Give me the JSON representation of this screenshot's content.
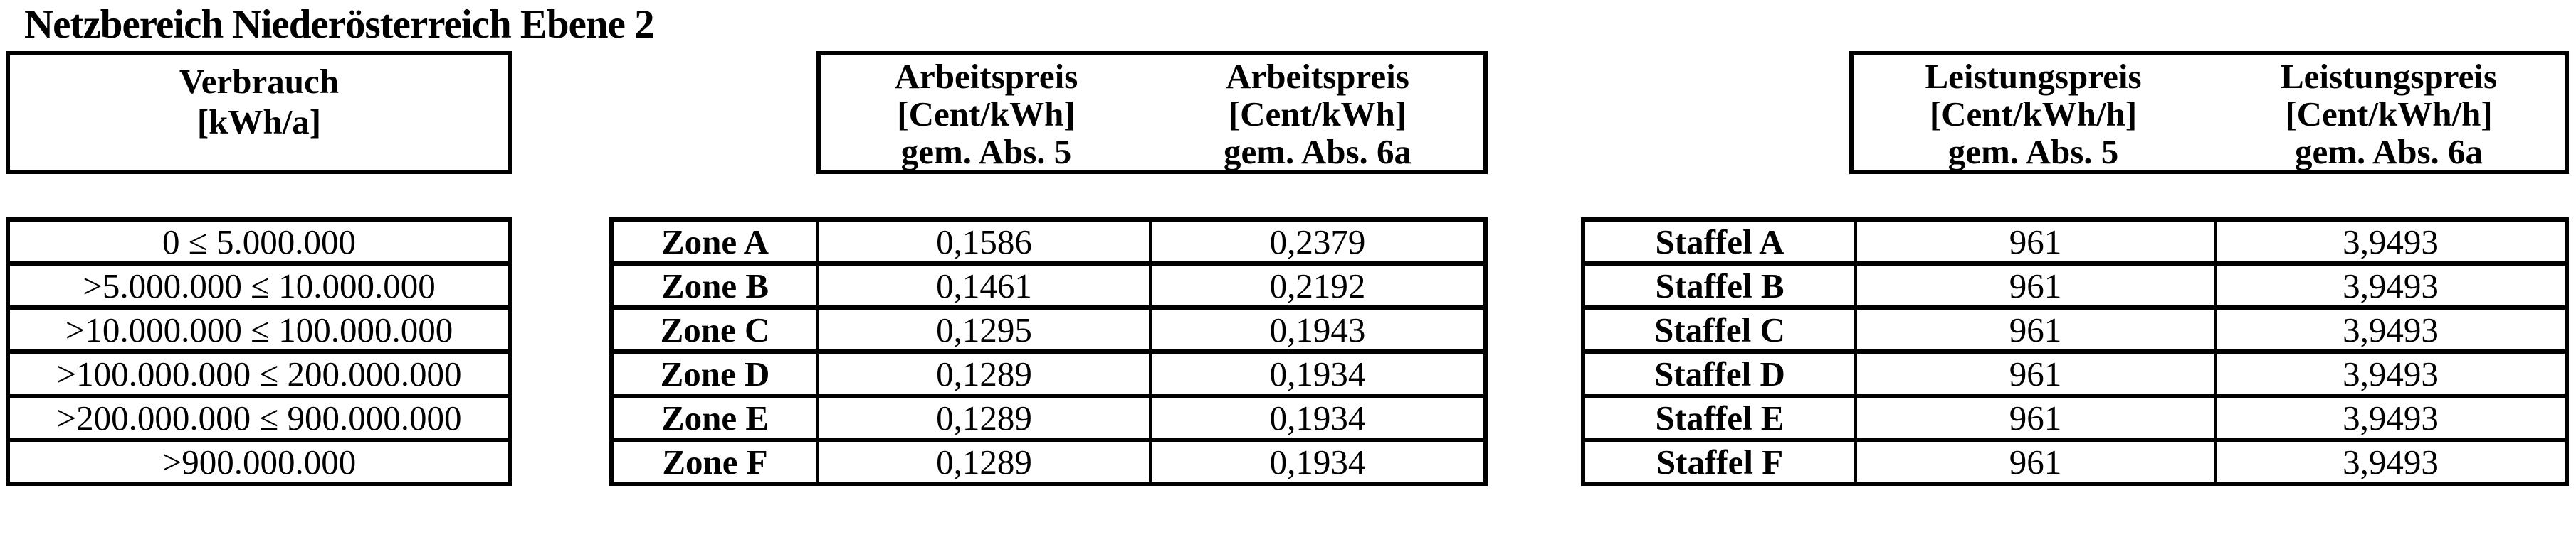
{
  "page": {
    "title": "Netzbereich Niederösterreich Ebene 2"
  },
  "colors": {
    "text": "#000000",
    "border": "#000000",
    "background": "#ffffff"
  },
  "verbrauch": {
    "header": {
      "line1": "Verbrauch",
      "line2": "[kWh/a]"
    },
    "rows": [
      "0 ≤ 5.000.000",
      ">5.000.000 ≤ 10.000.000",
      ">10.000.000 ≤ 100.000.000",
      ">100.000.000 ≤ 200.000.000",
      ">200.000.000 ≤ 900.000.000",
      ">900.000.000"
    ]
  },
  "arbeitspreis": {
    "header": {
      "col1": {
        "line1": "Arbeitspreis",
        "line2": "[Cent/kWh]",
        "line3": "gem. Abs. 5"
      },
      "col2": {
        "line1": "Arbeitspreis",
        "line2": "[Cent/kWh]",
        "line3": "gem. Abs. 6a"
      }
    },
    "rows": [
      {
        "label": "Zone A",
        "abs5": "0,1586",
        "abs6a": "0,2379"
      },
      {
        "label": "Zone B",
        "abs5": "0,1461",
        "abs6a": "0,2192"
      },
      {
        "label": "Zone C",
        "abs5": "0,1295",
        "abs6a": "0,1943"
      },
      {
        "label": "Zone D",
        "abs5": "0,1289",
        "abs6a": "0,1934"
      },
      {
        "label": "Zone E",
        "abs5": "0,1289",
        "abs6a": "0,1934"
      },
      {
        "label": "Zone F",
        "abs5": "0,1289",
        "abs6a": "0,1934"
      }
    ]
  },
  "leistungspreis": {
    "header": {
      "col1": {
        "line1": "Leistungspreis",
        "line2": "[Cent/kWh/h]",
        "line3": "gem. Abs. 5"
      },
      "col2": {
        "line1": "Leistungspreis",
        "line2": "[Cent/kWh/h]",
        "line3": "gem. Abs. 6a"
      }
    },
    "rows": [
      {
        "label": "Staffel A",
        "abs5": "961",
        "abs6a": "3,9493"
      },
      {
        "label": "Staffel B",
        "abs5": "961",
        "abs6a": "3,9493"
      },
      {
        "label": "Staffel C",
        "abs5": "961",
        "abs6a": "3,9493"
      },
      {
        "label": "Staffel D",
        "abs5": "961",
        "abs6a": "3,9493"
      },
      {
        "label": "Staffel E",
        "abs5": "961",
        "abs6a": "3,9493"
      },
      {
        "label": "Staffel F",
        "abs5": "961",
        "abs6a": "3,9493"
      }
    ]
  }
}
